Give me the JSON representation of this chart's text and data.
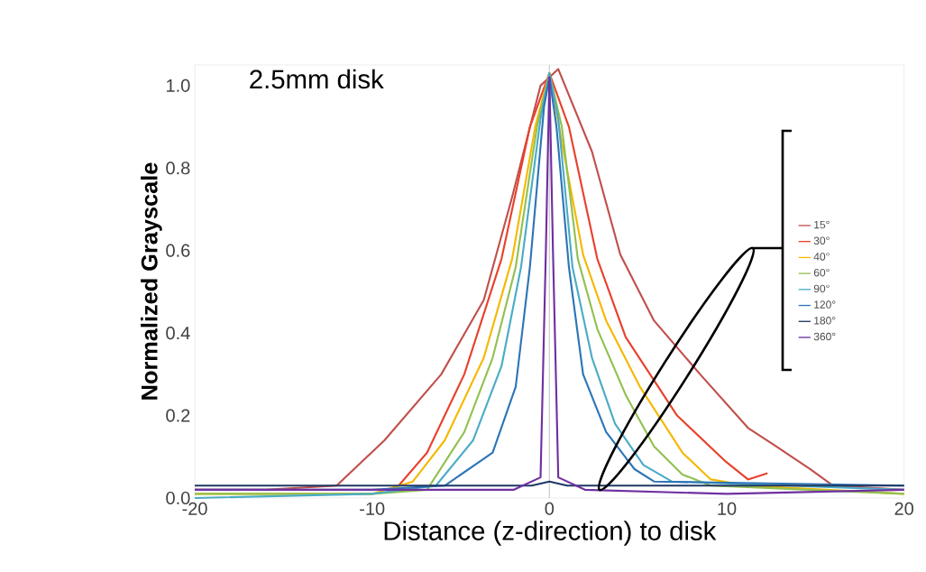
{
  "chart_data": {
    "type": "line",
    "xlabel": "Distance (z-direction) to disk",
    "ylabel": "Normalized Grayscale",
    "annotations": [
      "2.5mm disk"
    ],
    "xlim": [
      -20,
      20
    ],
    "ylim": [
      0,
      1.05
    ],
    "xticks": [
      -20,
      -10,
      0,
      10,
      20
    ],
    "yticks": [
      {
        "value": 0,
        "label": "0.0"
      },
      {
        "value": 0.2,
        "label": "0.2"
      },
      {
        "value": 0.4,
        "label": "0.4"
      },
      {
        "value": 0.6,
        "label": "0.6"
      },
      {
        "value": 0.8,
        "label": "0.8"
      },
      {
        "value": 1,
        "label": "1.0"
      }
    ],
    "legend": "right",
    "ref_lines": [
      {
        "axis": "x",
        "value": 0,
        "color": "#d0d0d0"
      }
    ],
    "series": [
      {
        "name": "15°",
        "color": "#c0504d",
        "x": [
          -20,
          -16,
          -12,
          -9.3,
          -6.1,
          -3.7,
          -2.1,
          -0.5,
          0.5,
          2.4,
          4,
          5.9,
          8.5,
          11.2,
          12.8,
          14.7,
          16,
          20
        ],
        "values": [
          0.02,
          0.02,
          0.03,
          0.14,
          0.3,
          0.48,
          0.73,
          1.0,
          1.04,
          0.84,
          0.59,
          0.43,
          0.3,
          0.17,
          0.125,
          0.07,
          0.03,
          0.02
        ]
      },
      {
        "name": "30°",
        "color": "#e8412c",
        "x": [
          -8.5,
          -6.9,
          -4.8,
          -2.7,
          -1.1,
          0,
          1.1,
          2.7,
          4.3,
          7.2,
          9.9,
          11.2,
          12.3
        ],
        "values": [
          0.03,
          0.11,
          0.3,
          0.58,
          0.9,
          1.03,
          0.9,
          0.58,
          0.39,
          0.2,
          0.09,
          0.045,
          0.06
        ]
      },
      {
        "name": "40°",
        "color": "#f5b800",
        "x": [
          -20,
          -10,
          -7.7,
          -5.9,
          -3.7,
          -2.1,
          -0.8,
          0,
          0.8,
          1.9,
          3.2,
          5.1,
          7.5,
          9.1,
          11.2,
          20
        ],
        "values": [
          0.01,
          0.01,
          0.04,
          0.14,
          0.34,
          0.58,
          0.9,
          1.03,
          0.84,
          0.59,
          0.43,
          0.27,
          0.11,
          0.045,
          0.03,
          0.01
        ]
      },
      {
        "name": "60°",
        "color": "#92c050",
        "x": [
          -20,
          -10,
          -6.9,
          -4.8,
          -3.2,
          -1.9,
          -0.7,
          0,
          0.7,
          1.6,
          2.7,
          4.3,
          5.9,
          7.5,
          9.1,
          20
        ],
        "values": [
          0.01,
          0.01,
          0.02,
          0.16,
          0.34,
          0.56,
          0.9,
          1.03,
          0.9,
          0.58,
          0.41,
          0.25,
          0.125,
          0.057,
          0.03,
          0.01
        ]
      },
      {
        "name": "90°",
        "color": "#4bacc6",
        "x": [
          -20,
          -10,
          -6.4,
          -4.3,
          -2.7,
          -1.6,
          -0.5,
          0,
          0.5,
          1.3,
          2.4,
          3.7,
          5.3,
          6.9,
          20
        ],
        "values": [
          0.0,
          0.01,
          0.03,
          0.14,
          0.32,
          0.56,
          0.92,
          1.03,
          0.92,
          0.56,
          0.34,
          0.18,
          0.08,
          0.04,
          0.02
        ]
      },
      {
        "name": "120°",
        "color": "#2e75b6",
        "x": [
          -20,
          -10,
          -5.9,
          -3.2,
          -1.9,
          -1.1,
          -0.3,
          0,
          0.4,
          1.1,
          1.9,
          3.2,
          4.8,
          5.9,
          20
        ],
        "values": [
          0.02,
          0.02,
          0.03,
          0.11,
          0.27,
          0.56,
          0.95,
          1.02,
          0.9,
          0.56,
          0.3,
          0.16,
          0.07,
          0.04,
          0.03
        ]
      },
      {
        "name": "180°",
        "color": "#1f3864",
        "x": [
          -20,
          -15,
          -10,
          -5,
          -1,
          0,
          1,
          5,
          10,
          15,
          20
        ],
        "values": [
          0.03,
          0.03,
          0.03,
          0.03,
          0.03,
          0.04,
          0.03,
          0.03,
          0.03,
          0.03,
          0.03
        ]
      },
      {
        "name": "360°",
        "color": "#7030a0",
        "x": [
          -20,
          -10,
          -2,
          -0.5,
          -0.2,
          0,
          0.2,
          0.5,
          2,
          10,
          20
        ],
        "values": [
          0.02,
          0.02,
          0.02,
          0.05,
          0.6,
          1.02,
          0.6,
          0.05,
          0.02,
          0.01,
          0.02
        ]
      }
    ]
  }
}
